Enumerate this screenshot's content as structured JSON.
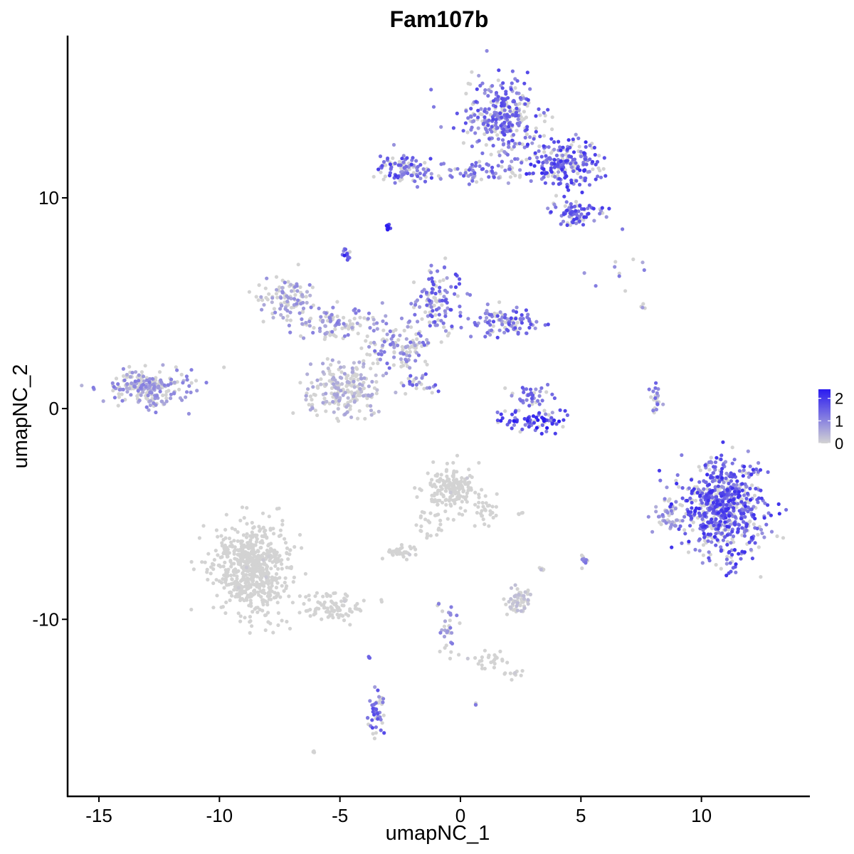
{
  "chart_data": {
    "type": "scatter",
    "title": "Fam107b",
    "xlabel": "umapNC_1",
    "ylabel": "umapNC_2",
    "xlim": [
      -16.3,
      14.5
    ],
    "ylim": [
      -18.4,
      17.7
    ],
    "xticks": [
      -15,
      -10,
      -5,
      0,
      5,
      10
    ],
    "xtick_labels": [
      "-15",
      "-10",
      "-5",
      "0",
      "5",
      "10"
    ],
    "yticks": [
      -10,
      0,
      10
    ],
    "ytick_labels": [
      "-10",
      "0",
      "10"
    ],
    "grid": false,
    "legend": {
      "placement": "right",
      "labels": [
        "2",
        "1",
        "0"
      ],
      "values": [
        2,
        1,
        0
      ],
      "range": [
        0,
        2.4
      ]
    },
    "colors": {
      "low": "#D3D3D3",
      "high": "#2A1BF0"
    },
    "clusters": [
      {
        "cx": 1.8,
        "cy": 13.9,
        "sx": 0.9,
        "sy": 1.1,
        "n": 320,
        "expr": 0.55
      },
      {
        "cx": 4.3,
        "cy": 11.6,
        "sx": 1.0,
        "sy": 0.7,
        "n": 230,
        "expr": 0.65
      },
      {
        "cx": 4.8,
        "cy": 9.3,
        "sx": 0.7,
        "sy": 0.4,
        "n": 80,
        "expr": 0.6
      },
      {
        "cx": 0.8,
        "cy": 11.2,
        "sx": 1.6,
        "sy": 0.35,
        "n": 80,
        "expr": 0.5
      },
      {
        "cx": -2.4,
        "cy": 11.4,
        "sx": 0.7,
        "sy": 0.45,
        "n": 90,
        "expr": 0.6
      },
      {
        "cx": -3.0,
        "cy": 8.6,
        "sx": 0.12,
        "sy": 0.1,
        "n": 12,
        "expr": 0.95
      },
      {
        "cx": -4.7,
        "cy": 7.3,
        "sx": 0.12,
        "sy": 0.15,
        "n": 14,
        "expr": 0.7
      },
      {
        "cx": -7.2,
        "cy": 5.3,
        "sx": 0.7,
        "sy": 0.6,
        "n": 100,
        "expr": 0.3
      },
      {
        "cx": -5.0,
        "cy": 4.0,
        "sx": 1.3,
        "sy": 0.5,
        "n": 110,
        "expr": 0.35
      },
      {
        "cx": -1.0,
        "cy": 5.2,
        "sx": 0.7,
        "sy": 0.9,
        "n": 120,
        "expr": 0.55
      },
      {
        "cx": 1.8,
        "cy": 4.0,
        "sx": 0.9,
        "sy": 0.5,
        "n": 100,
        "expr": 0.55
      },
      {
        "cx": -2.5,
        "cy": 2.9,
        "sx": 0.9,
        "sy": 0.6,
        "n": 110,
        "expr": 0.4
      },
      {
        "cx": -4.8,
        "cy": 0.9,
        "sx": 1.0,
        "sy": 0.8,
        "n": 220,
        "expr": 0.2
      },
      {
        "cx": -1.7,
        "cy": 1.2,
        "sx": 0.6,
        "sy": 0.3,
        "n": 25,
        "expr": 0.5
      },
      {
        "cx": -13.0,
        "cy": 1.0,
        "sx": 1.1,
        "sy": 0.55,
        "n": 220,
        "expr": 0.35
      },
      {
        "cx": 3.0,
        "cy": -0.6,
        "sx": 0.9,
        "sy": 0.3,
        "n": 80,
        "expr": 0.75
      },
      {
        "cx": 3.0,
        "cy": 0.6,
        "sx": 0.5,
        "sy": 0.5,
        "n": 40,
        "expr": 0.5
      },
      {
        "cx": 8.1,
        "cy": 0.4,
        "sx": 0.15,
        "sy": 0.55,
        "n": 25,
        "expr": 0.45
      },
      {
        "cx": 10.9,
        "cy": -4.8,
        "sx": 1.1,
        "sy": 1.4,
        "n": 650,
        "expr": 0.65
      },
      {
        "cx": 8.6,
        "cy": -5.0,
        "sx": 0.3,
        "sy": 0.5,
        "n": 40,
        "expr": 0.35
      },
      {
        "cx": -0.4,
        "cy": -3.8,
        "sx": 0.6,
        "sy": 0.6,
        "n": 170,
        "expr": 0.05
      },
      {
        "cx": 1.0,
        "cy": -4.8,
        "sx": 0.4,
        "sy": 0.5,
        "n": 30,
        "expr": 0.05
      },
      {
        "cx": -1.3,
        "cy": -5.5,
        "sx": 0.35,
        "sy": 0.6,
        "n": 25,
        "expr": 0.05
      },
      {
        "cx": -2.4,
        "cy": -6.8,
        "sx": 0.4,
        "sy": 0.2,
        "n": 40,
        "expr": 0.05
      },
      {
        "cx": -8.6,
        "cy": -7.6,
        "sx": 1.0,
        "sy": 1.3,
        "n": 620,
        "expr": 0.04
      },
      {
        "cx": -5.4,
        "cy": -9.4,
        "sx": 0.9,
        "sy": 0.4,
        "n": 90,
        "expr": 0.06
      },
      {
        "cx": 2.4,
        "cy": -9.2,
        "sx": 0.35,
        "sy": 0.4,
        "n": 60,
        "expr": 0.1
      },
      {
        "cx": 3.4,
        "cy": -7.6,
        "sx": 0.05,
        "sy": 0.05,
        "n": 5,
        "expr": 0.1
      },
      {
        "cx": 5.1,
        "cy": -7.2,
        "sx": 0.1,
        "sy": 0.15,
        "n": 12,
        "expr": 0.4
      },
      {
        "cx": -0.5,
        "cy": -10.6,
        "sx": 0.25,
        "sy": 0.8,
        "n": 30,
        "expr": 0.35
      },
      {
        "cx": 1.2,
        "cy": -12.0,
        "sx": 0.6,
        "sy": 0.25,
        "n": 25,
        "expr": 0.05
      },
      {
        "cx": 2.3,
        "cy": -12.6,
        "sx": 0.2,
        "sy": 0.12,
        "n": 12,
        "expr": 0.05
      },
      {
        "cx": -3.5,
        "cy": -14.5,
        "sx": 0.2,
        "sy": 0.6,
        "n": 45,
        "expr": 0.55
      },
      {
        "cx": -6.1,
        "cy": -16.3,
        "sx": 0.05,
        "sy": 0.05,
        "n": 5,
        "expr": 0.0
      },
      {
        "cx": 0.6,
        "cy": -14.0,
        "sx": 0.05,
        "sy": 0.05,
        "n": 4,
        "expr": 0.6
      },
      {
        "cx": 7.5,
        "cy": 6.6,
        "sx": 1.5,
        "sy": 0.6,
        "n": 10,
        "expr": 0.4
      },
      {
        "cx": 7.6,
        "cy": 4.8,
        "sx": 0.08,
        "sy": 0.1,
        "n": 4,
        "expr": 0.4
      },
      {
        "cx": -3.8,
        "cy": -11.8,
        "sx": 0.05,
        "sy": 0.05,
        "n": 3,
        "expr": 0.5
      },
      {
        "cx": -0.9,
        "cy": -9.3,
        "sx": 0.05,
        "sy": 0.05,
        "n": 3,
        "expr": 0.5
      },
      {
        "cx": 2.6,
        "cy": -5.0,
        "sx": 0.1,
        "sy": 0.05,
        "n": 4,
        "expr": 0.0
      }
    ]
  }
}
